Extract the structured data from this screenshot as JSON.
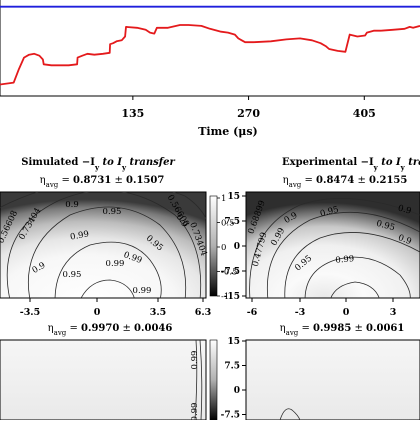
{
  "chart_data": [
    {
      "type": "line",
      "xlabel": "Time (μs)",
      "xticks": [
        "135",
        "270",
        "405"
      ],
      "xlim": [
        -20,
        470
      ],
      "ylim": [
        0,
        1
      ],
      "series": [
        {
          "color": "#1f1fdc",
          "x": [
            -20,
            470
          ],
          "y": [
            0.93,
            0.93
          ]
        },
        {
          "color": "#e41a1c",
          "x": [
            -20,
            -4,
            2,
            8,
            14,
            20,
            26,
            30,
            31,
            40,
            60,
            70,
            70.5,
            76,
            82,
            90,
            100,
            108,
            108.5,
            112,
            116,
            122,
            126,
            127,
            140,
            150,
            155,
            160,
            163,
            176,
            190,
            200,
            215,
            225,
            238,
            246,
            254,
            258,
            262,
            266,
            276,
            296,
            314,
            330,
            344,
            354,
            360,
            364,
            374,
            383,
            388,
            397,
            406,
            408,
            416,
            424,
            438,
            452,
            458,
            462,
            470
          ],
          "y": [
            0.12,
            0.14,
            0.28,
            0.4,
            0.43,
            0.44,
            0.42,
            0.38,
            0.33,
            0.32,
            0.32,
            0.33,
            0.4,
            0.42,
            0.44,
            0.43,
            0.44,
            0.45,
            0.54,
            0.55,
            0.57,
            0.58,
            0.62,
            0.72,
            0.71,
            0.69,
            0.66,
            0.65,
            0.71,
            0.71,
            0.74,
            0.74,
            0.73,
            0.7,
            0.67,
            0.66,
            0.64,
            0.6,
            0.58,
            0.56,
            0.56,
            0.57,
            0.59,
            0.6,
            0.58,
            0.55,
            0.52,
            0.49,
            0.47,
            0.46,
            0.64,
            0.62,
            0.63,
            0.66,
            0.68,
            0.68,
            0.69,
            0.7,
            0.72,
            0.71,
            0.73
          ]
        }
      ]
    },
    {
      "type": "heatmap",
      "title": "Simulated  −I_y to I_y transfer",
      "subtitle": "η_avg = 0.8731 ± 0.1507",
      "xticks": [
        "-3.5",
        "0",
        "3.5",
        "6.3"
      ],
      "contour_labels": [
        "0.56608",
        "0.73404",
        "0.9",
        "0.95",
        "0.99",
        "0.99",
        "0.99",
        "0.95",
        "0.9",
        "0.73404",
        "0.56608",
        "0.95",
        "0.9",
        "0.99"
      ]
    },
    {
      "type": "heatmap",
      "title": "Experimental  −I_y to I_y transfer",
      "subtitle": "η_avg = 0.8474 ± 0.2155",
      "xticks": [
        "-6",
        "-3",
        "0",
        "3"
      ],
      "yticks": [
        "15",
        "7.5",
        "0",
        "-7.5",
        "-15"
      ],
      "contour_labels": [
        "0.68899",
        "0.47799",
        "0.9",
        "0.95",
        "0.99",
        "0.99",
        "0.95",
        "0.9",
        "0.95",
        "0.9"
      ]
    },
    {
      "type": "heatmap",
      "subtitle": "η_avg = 0.9970 ± 0.0046",
      "contour_labels": [
        "0.99",
        "0.99"
      ]
    },
    {
      "type": "heatmap",
      "subtitle": "η_avg = 0.9985 ± 0.0061",
      "yticks": [
        "15",
        "7.5",
        "0",
        "-7.5"
      ]
    }
  ],
  "colorbar": {
    "ticks": [
      "1",
      "0.5",
      "0",
      "-0.5",
      "-1"
    ]
  }
}
